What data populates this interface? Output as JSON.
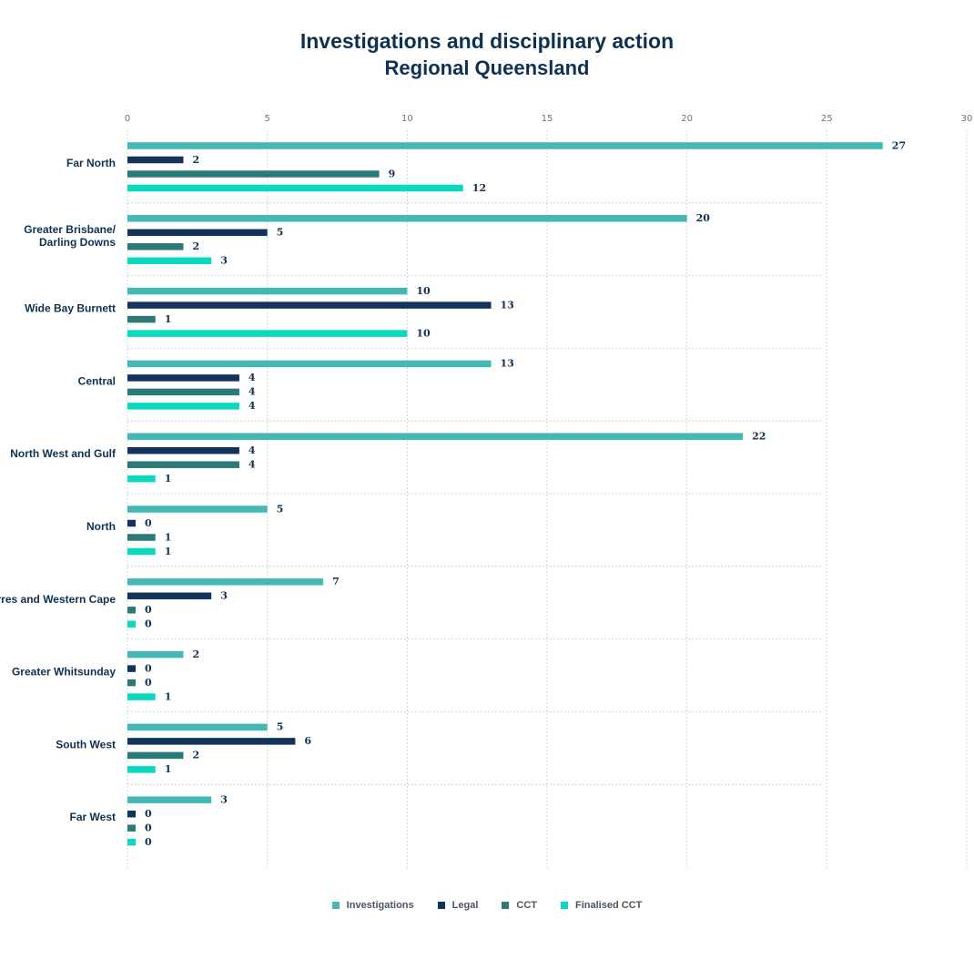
{
  "chart_data": {
    "type": "bar",
    "orientation": "horizontal",
    "title": "Investigations and disciplinary action",
    "subtitle": "Regional Queensland",
    "xlim": [
      0,
      30
    ],
    "xticks": [
      0,
      5,
      10,
      15,
      20,
      25,
      30
    ],
    "grid": true,
    "legend_position": "bottom",
    "categories": [
      "Far North",
      "Greater Brisbane/\nDarling Downs",
      "Wide Bay Burnett",
      "Central",
      "North West and Gulf",
      "North",
      "Torres and Western Cape",
      "Greater Whitsunday",
      "South West",
      "Far West"
    ],
    "series": [
      {
        "name": "Investigations",
        "color": "#43b8b5",
        "values": [
          27,
          20,
          10,
          13,
          22,
          5,
          7,
          2,
          5,
          3
        ]
      },
      {
        "name": "Legal",
        "color": "#13345a",
        "values": [
          2,
          5,
          13,
          4,
          4,
          0,
          3,
          0,
          6,
          0
        ]
      },
      {
        "name": "CCT",
        "color": "#2c7a78",
        "values": [
          9,
          2,
          1,
          4,
          4,
          1,
          0,
          0,
          2,
          0
        ]
      },
      {
        "name": "Finalised CCT",
        "color": "#0bd9bf",
        "values": [
          12,
          3,
          10,
          4,
          1,
          1,
          0,
          1,
          1,
          0
        ]
      }
    ]
  }
}
